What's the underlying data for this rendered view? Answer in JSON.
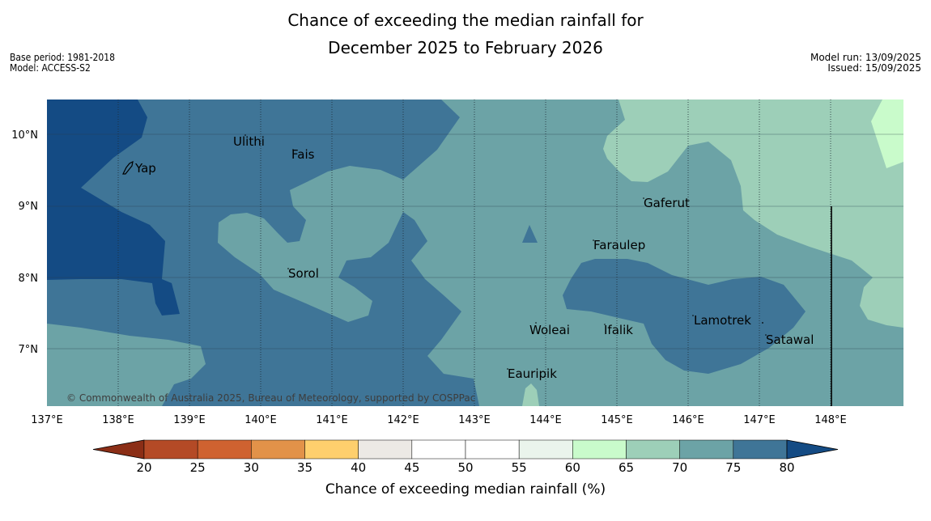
{
  "title": {
    "line1": "Chance of exceeding the median rainfall for",
    "line2": "December 2025 to February 2026"
  },
  "meta_left": {
    "base_period": "Base period: 1981-2018",
    "model": "Model: ACCESS-S2"
  },
  "meta_right": {
    "model_run": "Model run: 13/09/2025",
    "issued": "Issued: 15/09/2025"
  },
  "map": {
    "x_ticks": [
      "137°E",
      "138°E",
      "139°E",
      "140°E",
      "141°E",
      "142°E",
      "143°E",
      "144°E",
      "145°E",
      "146°E",
      "147°E",
      "148°E"
    ],
    "y_ticks": [
      "10°N",
      "9°N",
      "8°N",
      "7°N"
    ],
    "places": {
      "yap": "Yap",
      "ulithi": "Ulithi",
      "fais": "Fais",
      "sorol": "Sorol",
      "gaferut": "Gaferut",
      "faraulep": "Faraulep",
      "woleai": "Woleai",
      "ifalik": "Ifalik",
      "lamotrek": "Lamotrek",
      "satawal": "Satawal",
      "eauripik": "Eauripik"
    },
    "copyright": "© Commonwealth of Australia 2025, Bureau of Meteorology, supported by COSPPac"
  },
  "colorbar": {
    "title": "Chance of exceeding median rainfall (%)",
    "ticks": [
      "20",
      "25",
      "30",
      "35",
      "40",
      "45",
      "50",
      "55",
      "60",
      "65",
      "70",
      "75",
      "80"
    ],
    "colors": {
      "below20": "#8b2e16",
      "b20_25": "#b44a26",
      "b25_30": "#cf6230",
      "b30_35": "#e29249",
      "b35_40": "#fecf6d",
      "b40_45": "#ece9e5",
      "b45_50": "#ffffff",
      "b50_55": "#ffffff",
      "b55_60": "#eaf4ec",
      "b60_65": "#c9fbcb",
      "b65_70": "#9dcfb8",
      "b70_75": "#6ca3a6",
      "b75_80": "#3f7597",
      "above80": "#144b84"
    }
  }
}
